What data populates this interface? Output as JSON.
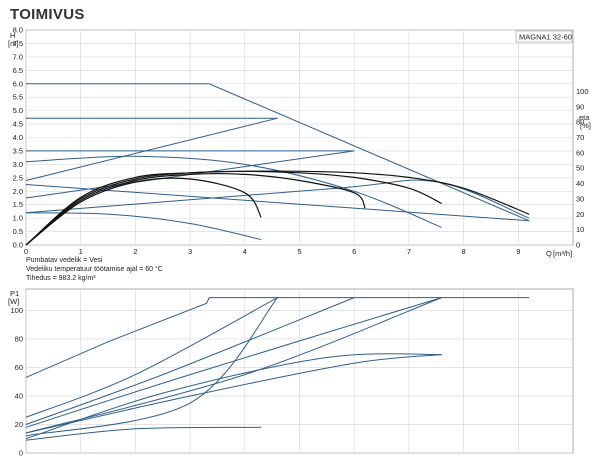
{
  "brand": "TOIMIVUS",
  "chart_data": [
    {
      "type": "line",
      "title": "",
      "model_label": "MAGNA1 32-60",
      "y_label": "H",
      "y_unit": "[m]",
      "y2_label": "eta",
      "y2_unit": "[%]",
      "x_label": "Q",
      "x_unit": "[m³/h]",
      "xlim": [
        0,
        10
      ],
      "ylim": [
        0,
        8.0
      ],
      "y2lim": [
        0,
        140
      ],
      "x_ticks": [
        "0",
        "1",
        "2",
        "3",
        "4",
        "5",
        "6",
        "7",
        "8",
        "9"
      ],
      "y_ticks": [
        "0.0",
        "0.5",
        "1.0",
        "1.5",
        "2.0",
        "2.5",
        "3.0",
        "3.5",
        "4.0",
        "4.5",
        "5.0",
        "5.5",
        "6.0",
        "6.5",
        "7.0",
        "7.5",
        "8.0"
      ],
      "y2_ticks": [
        "0",
        "10",
        "20",
        "30",
        "40",
        "50",
        "60",
        "70",
        "80",
        "90",
        "100"
      ],
      "grid": true,
      "notes": [
        "Pumbatav vedelik = Vesi",
        "Vedeliku temperatuur töötamise ajal = 60 °C",
        "Tihedus = 983.2 kg/m³"
      ],
      "series": [
        {
          "kind": "head",
          "color": "#2f5f8a",
          "x": [
            0,
            3.35,
            9.2
          ],
          "y": [
            6.0,
            6.0,
            0.9
          ]
        },
        {
          "kind": "head",
          "color": "#2f5f8a",
          "x": [
            0,
            4.6
          ],
          "y": [
            4.72,
            4.72
          ]
        },
        {
          "kind": "head",
          "color": "#2f5f8a",
          "x": [
            0,
            6.0
          ],
          "y": [
            3.5,
            3.5
          ]
        },
        {
          "kind": "head",
          "color": "#2f5f8a",
          "x": [
            0,
            9.2
          ],
          "y": [
            2.25,
            0.9
          ]
        },
        {
          "kind": "proportional",
          "color": "#2f5f8a",
          "x": [
            0,
            4.6
          ],
          "y": [
            2.4,
            4.72
          ]
        },
        {
          "kind": "proportional",
          "color": "#2f5f8a",
          "x": [
            0,
            6.0
          ],
          "y": [
            1.75,
            3.5
          ]
        },
        {
          "kind": "proportional",
          "color": "#2f5f8a",
          "x": [
            0,
            5.6,
            7.5,
            9.2
          ],
          "y": [
            1.2,
            2.1,
            2.35,
            1.0
          ]
        },
        {
          "kind": "dome",
          "color": "#2f5f8a",
          "x": [
            0,
            2.0,
            4.0,
            6.0,
            7.6
          ],
          "y": [
            3.1,
            3.3,
            3.0,
            2.0,
            0.65
          ]
        },
        {
          "kind": "dome",
          "color": "#2f5f8a",
          "x": [
            0,
            1.5,
            3.0,
            4.3
          ],
          "y": [
            1.2,
            1.15,
            0.8,
            0.2
          ]
        },
        {
          "kind": "efficiency",
          "color": "#111111",
          "x": [
            0,
            1.0,
            2.0,
            3.0,
            4.0,
            4.3
          ],
          "y": [
            0,
            28,
            41,
            43,
            34,
            18
          ]
        },
        {
          "kind": "efficiency",
          "color": "#111111",
          "x": [
            0,
            1.0,
            2.0,
            3.0,
            4.0,
            5.0,
            6.0,
            6.2
          ],
          "y": [
            0,
            29,
            42,
            46,
            46,
            42,
            34,
            24
          ]
        },
        {
          "kind": "efficiency",
          "color": "#111111",
          "x": [
            0,
            1.0,
            2.0,
            3.0,
            4.0,
            5.0,
            6.0,
            7.0,
            7.6
          ],
          "y": [
            0,
            30,
            43,
            47,
            48,
            47,
            44,
            37,
            27
          ]
        },
        {
          "kind": "efficiency",
          "color": "#111111",
          "x": [
            0,
            1.0,
            2.0,
            3.0,
            4.0,
            5.0,
            6.0,
            7.0,
            8.0,
            9.2
          ],
          "y": [
            0,
            31,
            44,
            47,
            48,
            48,
            47,
            44,
            37,
            20
          ]
        }
      ]
    },
    {
      "type": "line",
      "title": "",
      "y_label": "P1",
      "y_unit": "[W]",
      "xlim": [
        0,
        10
      ],
      "ylim": [
        0,
        115
      ],
      "y_ticks": [
        "0",
        "20",
        "40",
        "60",
        "80",
        "100"
      ],
      "grid": true,
      "series": [
        {
          "color": "#2f5f8a",
          "x": [
            0,
            1.5,
            3.3,
            3.35,
            9.2
          ],
          "y": [
            53,
            78,
            105,
            109,
            109
          ]
        },
        {
          "color": "#2f5f8a",
          "x": [
            0,
            2.0,
            4.6
          ],
          "y": [
            25,
            55,
            109
          ]
        },
        {
          "color": "#2f5f8a",
          "x": [
            0,
            2.5,
            6.0
          ],
          "y": [
            20,
            55,
            109
          ]
        },
        {
          "color": "#2f5f8a",
          "x": [
            0,
            3.0,
            7.6
          ],
          "y": [
            18,
            55,
            109
          ]
        },
        {
          "color": "#2f5f8a",
          "x": [
            0,
            4.0,
            7.6
          ],
          "y": [
            14,
            55,
            109
          ]
        },
        {
          "color": "#2f5f8a",
          "x": [
            0,
            3.0,
            4.6
          ],
          "y": [
            12,
            35,
            109
          ]
        },
        {
          "color": "#2f5f8a",
          "x": [
            0,
            2.5,
            5.5,
            7.6
          ],
          "y": [
            10,
            42,
            67,
            69
          ]
        },
        {
          "color": "#2f5f8a",
          "x": [
            0,
            3.0,
            6.0,
            7.6
          ],
          "y": [
            14,
            40,
            63,
            69
          ]
        },
        {
          "color": "#2f5f8a",
          "x": [
            0,
            2.0,
            4.3
          ],
          "y": [
            9,
            17,
            18
          ]
        }
      ]
    }
  ]
}
